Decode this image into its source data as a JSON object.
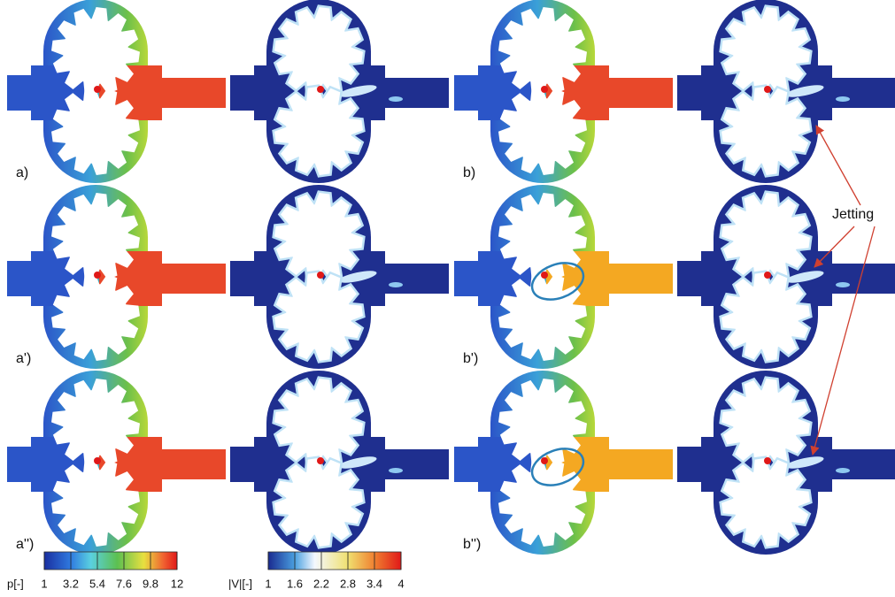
{
  "panels": [
    {
      "label": "a)"
    },
    {
      "label": "b)"
    },
    {
      "label": "a')"
    },
    {
      "label": "b')"
    },
    {
      "label": "a'')"
    },
    {
      "label": "b'')"
    }
  ],
  "annotation": "Jetting",
  "colorbars": [
    {
      "label": "p[-]",
      "ticks": [
        "1",
        "3.2",
        "5.4",
        "7.6",
        "9.8",
        "12"
      ]
    },
    {
      "label": "|V|[-]",
      "ticks": [
        "1",
        "1.6",
        "2.2",
        "2.8",
        "3.4",
        "4"
      ]
    }
  ]
}
